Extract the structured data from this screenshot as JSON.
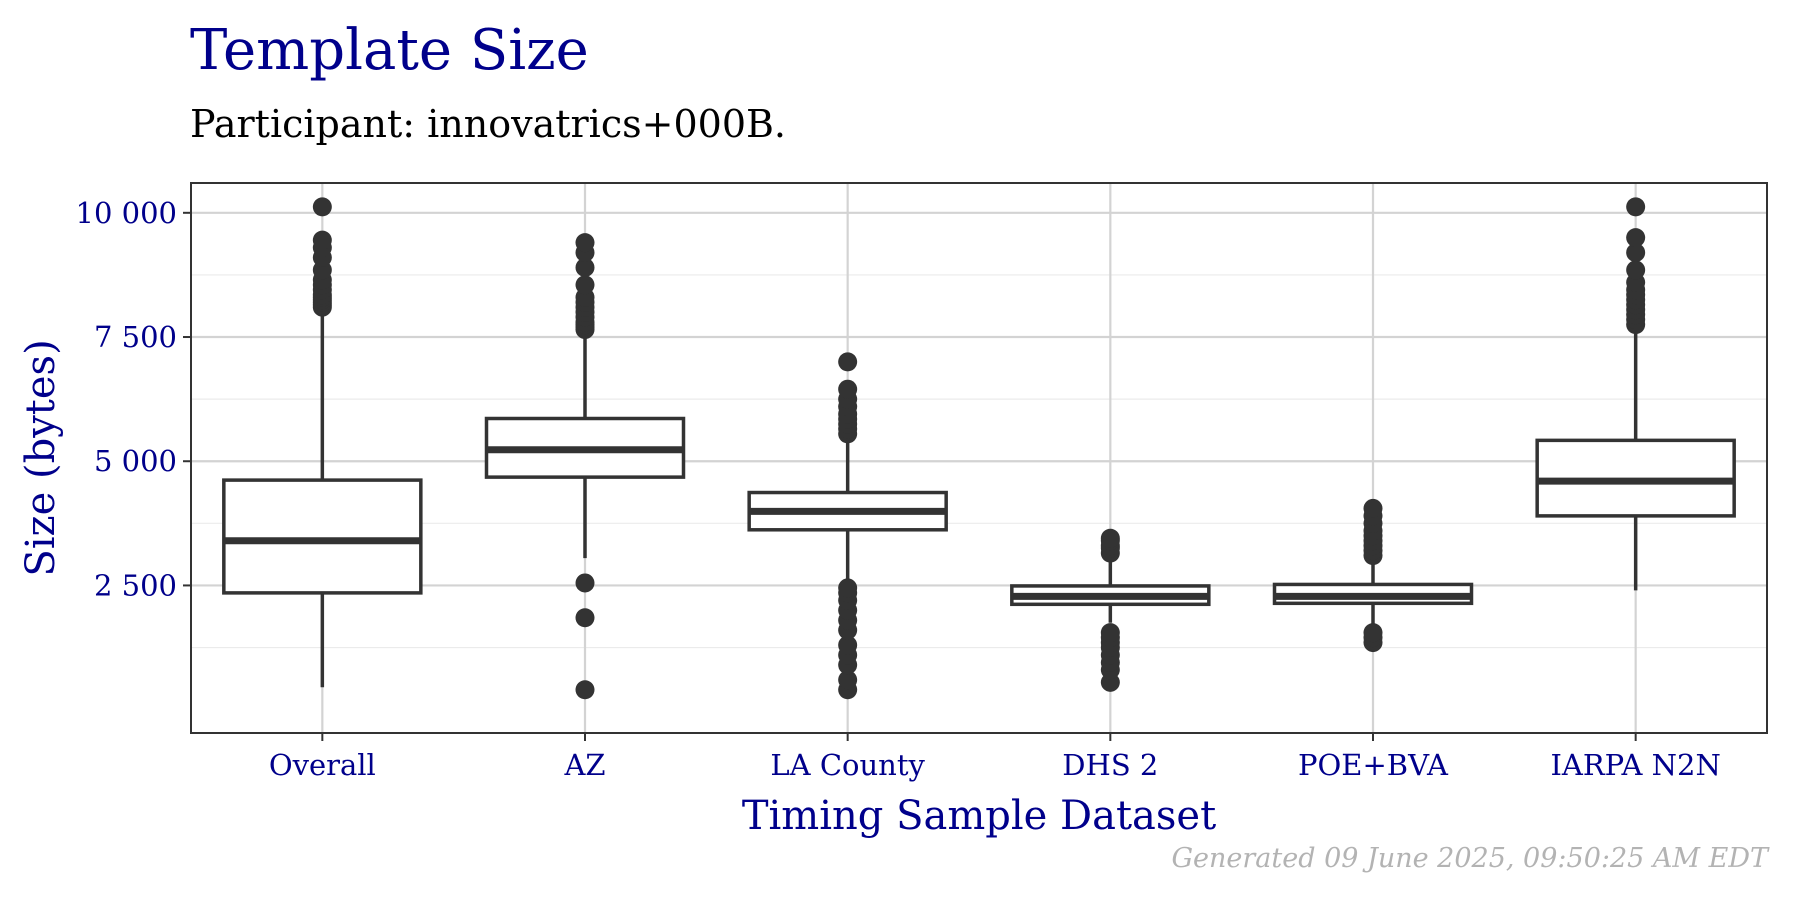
{
  "title": "Template Size",
  "subtitle": "Participant: innovatrics+000B.",
  "footer": "Generated 09 June 2025, 09:50:25 AM EDT",
  "colors": {
    "title": "#00008b",
    "box": "#333333",
    "grid_major": "#d3d3d3",
    "grid_minor": "#ebebeb",
    "footer": "#b3b3b3"
  },
  "chart_data": {
    "type": "boxplot",
    "xlabel": "Timing Sample Dataset",
    "ylabel": "Size (bytes)",
    "ylim": [
      0,
      10500
    ],
    "yticks": [
      2500,
      5000,
      7500,
      10000
    ],
    "ytick_labels": [
      "2 500",
      "5 000",
      "7 500",
      "10 000"
    ],
    "grid": true,
    "categories": [
      "Overall",
      "AZ",
      "LA County",
      "DHS 2",
      "POE+BVA",
      "IARPA N2N"
    ],
    "boxes": [
      {
        "name": "Overall",
        "whisker_low": 450,
        "q1": 2350,
        "median": 3400,
        "q3": 4620,
        "whisker_high": 8050,
        "outliers": [
          8100,
          8150,
          8200,
          8250,
          8300,
          8350,
          8450,
          8550,
          8650,
          8850,
          9100,
          9300,
          9450,
          10120
        ]
      },
      {
        "name": "AZ",
        "whisker_low": 3050,
        "q1": 4680,
        "median": 5230,
        "q3": 5860,
        "whisker_high": 7600,
        "outliers": [
          400,
          1850,
          2550,
          7650,
          7700,
          7750,
          7800,
          7900,
          8000,
          8100,
          8200,
          8300,
          8550,
          8900,
          9200,
          9400
        ]
      },
      {
        "name": "LA County",
        "whisker_low": 2550,
        "q1": 3620,
        "median": 3990,
        "q3": 4370,
        "whisker_high": 5450,
        "outliers": [
          400,
          600,
          900,
          1100,
          1300,
          1600,
          1800,
          2000,
          2200,
          2350,
          2450,
          5550,
          5650,
          5750,
          5850,
          5950,
          6100,
          6250,
          6450,
          7000
        ]
      },
      {
        "name": "DHS 2",
        "whisker_low": 1750,
        "q1": 2120,
        "median": 2280,
        "q3": 2490,
        "whisker_high": 3050,
        "outliers": [
          550,
          800,
          950,
          1100,
          1250,
          1350,
          1450,
          1550,
          3150,
          3250,
          3300,
          3400,
          3450
        ]
      },
      {
        "name": "POE+BVA",
        "whisker_low": 1650,
        "q1": 2140,
        "median": 2280,
        "q3": 2520,
        "whisker_high": 3050,
        "outliers": [
          1350,
          1450,
          1550,
          3100,
          3200,
          3300,
          3400,
          3500,
          3600,
          3750,
          3900,
          4050
        ]
      },
      {
        "name": "IARPA N2N",
        "whisker_low": 2400,
        "q1": 3900,
        "median": 4600,
        "q3": 5420,
        "whisker_high": 7700,
        "outliers": [
          7750,
          7850,
          7950,
          8050,
          8150,
          8250,
          8350,
          8450,
          8600,
          8850,
          9200,
          9500,
          10120
        ]
      }
    ]
  }
}
